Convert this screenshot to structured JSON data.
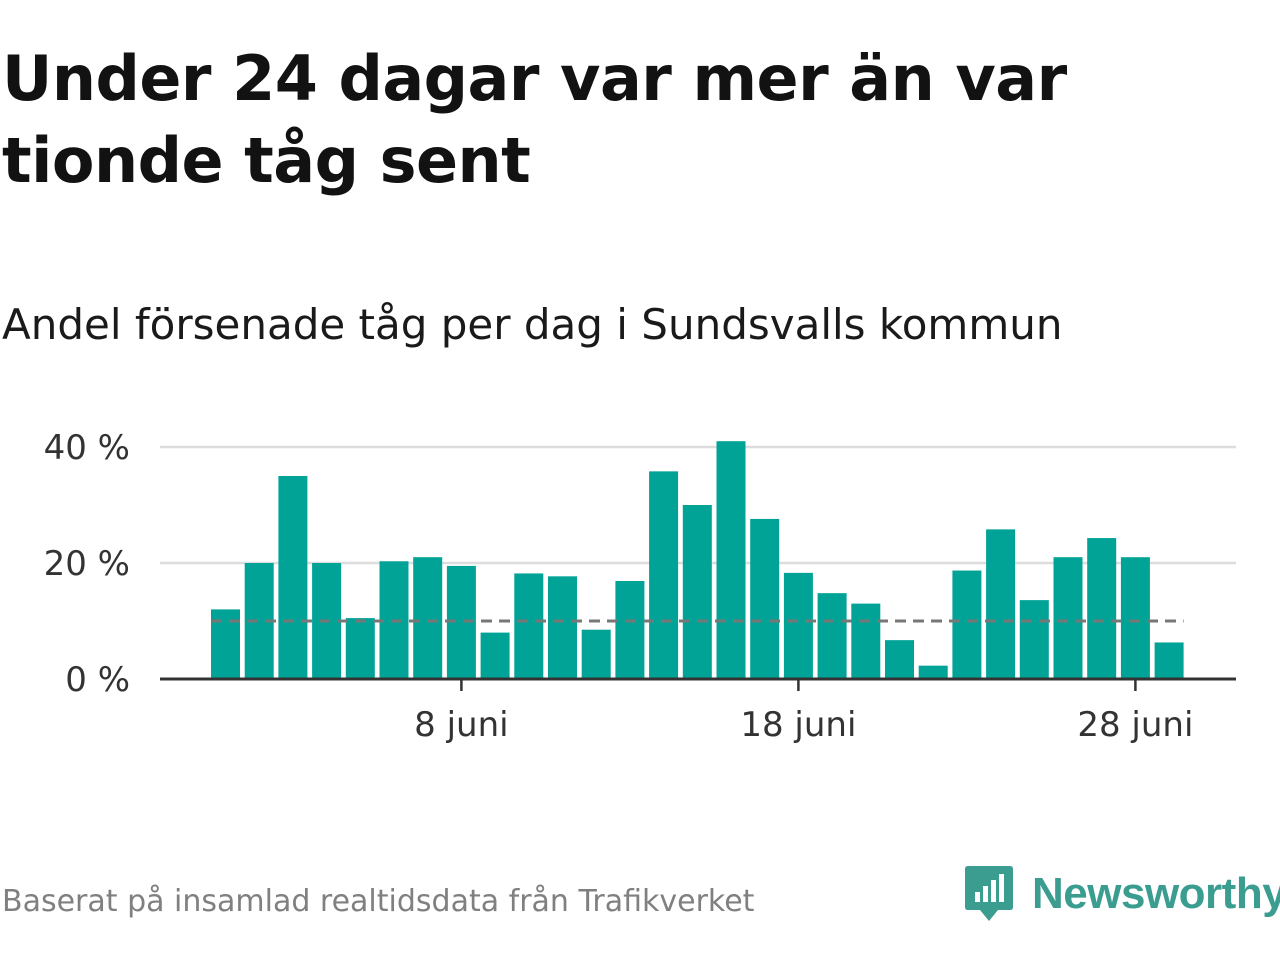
{
  "headline": "Under 24 dagar var mer än var tionde tåg sent",
  "subtitle": "Andel försenade tåg per dag i Sundsvalls kommun",
  "source": "Baserat på insamlad realtidsdata från Trafikverket",
  "brand": {
    "name": "Newsworthy",
    "color": "#3b9c90"
  },
  "chart_data": {
    "type": "bar",
    "unit": "%",
    "x": [
      1,
      2,
      3,
      4,
      5,
      6,
      7,
      8,
      9,
      10,
      11,
      12,
      13,
      14,
      15,
      16,
      17,
      18,
      19,
      20,
      21,
      22,
      23,
      24,
      25,
      26,
      27,
      28,
      29
    ],
    "values": [
      12,
      20,
      35,
      20,
      10.5,
      20.3,
      21,
      19.5,
      8,
      18.2,
      17.7,
      8.5,
      16.9,
      35.8,
      30,
      41,
      27.6,
      18.3,
      14.8,
      13,
      6.7,
      2.3,
      18.7,
      25.8,
      13.6,
      21,
      24.3,
      21,
      6.3
    ],
    "x_ticks": [
      {
        "x": 8,
        "label": "8 juni"
      },
      {
        "x": 18,
        "label": "18 juni"
      },
      {
        "x": 28,
        "label": "28 juni"
      }
    ],
    "y_ticks": [
      {
        "value": 0,
        "label": "0 %"
      },
      {
        "value": 20,
        "label": "20 %"
      },
      {
        "value": 40,
        "label": "40 %"
      }
    ],
    "ylim": [
      0,
      40
    ],
    "reference_line": 10,
    "grid": true,
    "colors": {
      "bar": "#00a396",
      "grid": "#dddddd",
      "axis": "#333333",
      "reference": "#777777",
      "tick_text": "#333333"
    }
  }
}
